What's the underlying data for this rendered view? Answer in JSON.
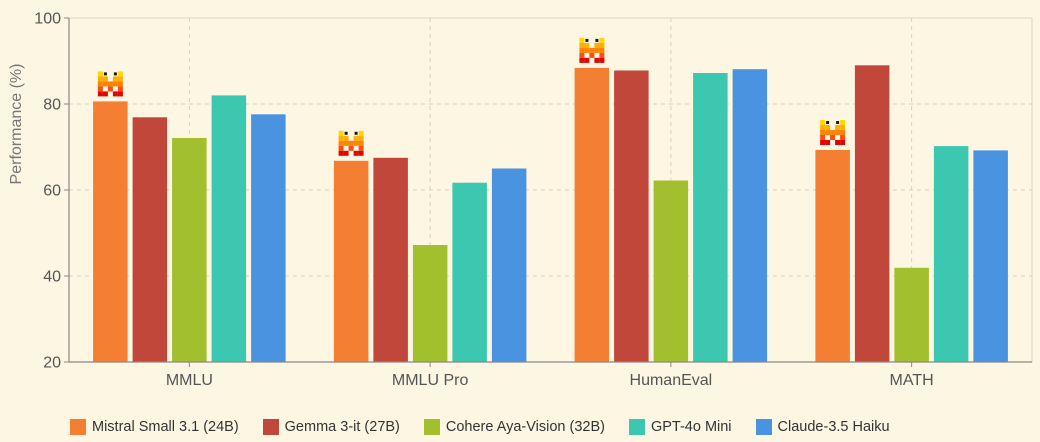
{
  "chart_data": {
    "type": "bar",
    "title": "",
    "xlabel": "",
    "ylabel": "Performance (%)",
    "ylim": [
      20,
      100
    ],
    "yticks": [
      20,
      40,
      60,
      80,
      100
    ],
    "grid": true,
    "legend_position": "bottom",
    "categories": [
      "MMLU",
      "MMLU Pro",
      "HumanEval",
      "MATH"
    ],
    "series": [
      {
        "name": "Mistral Small 3.1 (24B)",
        "color": "#f47e32",
        "values": [
          80.6,
          66.8,
          88.4,
          69.3
        ]
      },
      {
        "name": "Gemma 3-it (27B)",
        "color": "#c1473a",
        "values": [
          76.9,
          67.5,
          87.8,
          89.0
        ]
      },
      {
        "name": "Cohere Aya-Vision (32B)",
        "color": "#a2bf2e",
        "values": [
          72.1,
          47.2,
          62.2,
          41.9
        ]
      },
      {
        "name": "GPT-4o Mini",
        "color": "#3cc7b0",
        "values": [
          82.0,
          61.7,
          87.2,
          70.2
        ]
      },
      {
        "name": "Claude-3.5 Haiku",
        "color": "#4a93e0",
        "values": [
          77.6,
          65.0,
          88.1,
          69.2
        ]
      }
    ],
    "annotations": [
      {
        "series": "Mistral Small 3.1 (24B)",
        "marker": "mistral-logo-icon",
        "on": "every-category"
      }
    ]
  }
}
